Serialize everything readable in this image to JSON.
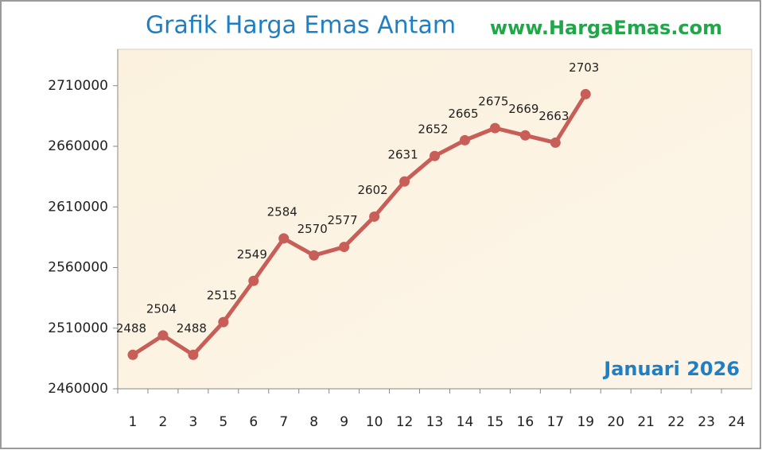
{
  "chart_data": {
    "type": "line",
    "title": "Grafik Harga Emas Antam",
    "subtitle": "www.HargaEmas.com",
    "annotation": "Januari 2026",
    "categories": [
      "1",
      "2",
      "3",
      "5",
      "6",
      "7",
      "8",
      "9",
      "10",
      "12",
      "13",
      "14",
      "15",
      "16",
      "17",
      "19",
      "20",
      "21",
      "22",
      "23",
      "24"
    ],
    "series": [
      {
        "color": "#c75f58",
        "values": [
          2488000,
          2504000,
          2488000,
          2515000,
          2549000,
          2584000,
          2570000,
          2577000,
          2602000,
          2631000,
          2652000,
          2665000,
          2675000,
          2669000,
          2663000,
          2703000,
          null,
          null,
          null,
          null,
          null
        ],
        "value_labels": [
          "2488",
          "2504",
          "2488",
          "2515",
          "2549",
          "2584",
          "2570",
          "2577",
          "2602",
          "2631",
          "2652",
          "2665",
          "2675",
          "2669",
          "2663",
          "2703",
          null,
          null,
          null,
          null,
          null
        ]
      }
    ],
    "ylim": [
      2460000,
      2740000
    ],
    "yticks": [
      2460000,
      2510000,
      2560000,
      2610000,
      2660000,
      2710000
    ]
  }
}
